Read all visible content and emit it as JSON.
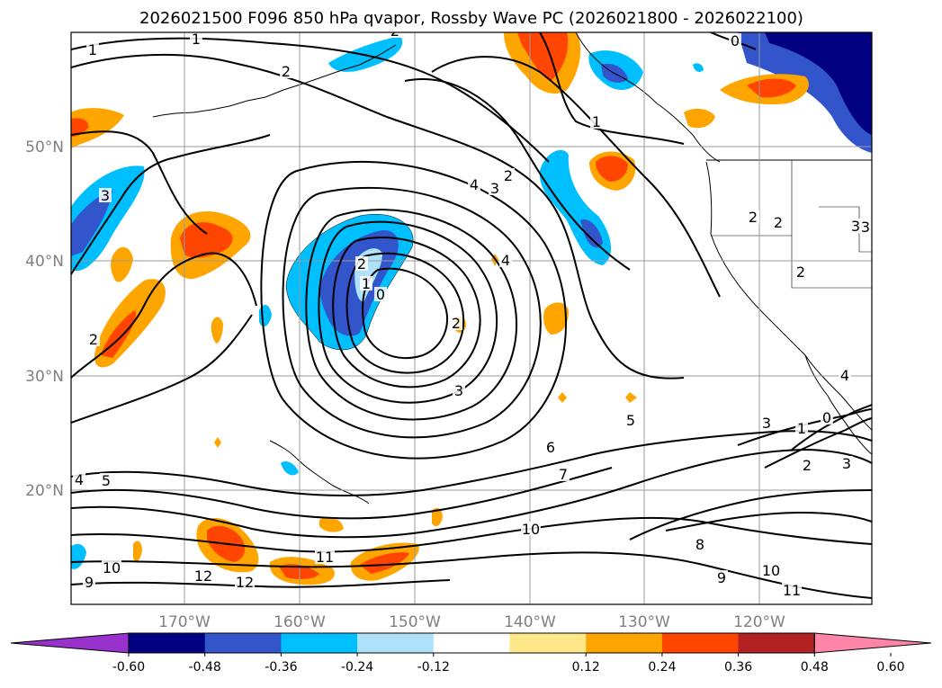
{
  "title": "2026021500 F096 850 hPa qvapor, Rossby Wave PC (2026021800 - 2026022100)",
  "map": {
    "lat_labels": [
      "50°N",
      "40°N",
      "30°N",
      "20°N"
    ],
    "lon_labels": [
      "170°W",
      "160°W",
      "150°W",
      "140°W",
      "130°W",
      "120°W"
    ]
  },
  "colorbar": {
    "colors": [
      "#9932cc",
      "#000080",
      "#3355cc",
      "#00bfff",
      "#aee2fa",
      "#ffffff",
      "#ffe88a",
      "#ffa500",
      "#ff4500",
      "#b22222",
      "#ff85a8"
    ],
    "ticks": [
      "-0.60",
      "-0.48",
      "-0.36",
      "-0.24",
      "-0.12",
      "0.12",
      "0.24",
      "0.36",
      "0.48",
      "0.60"
    ]
  },
  "contour_labels": [
    "1",
    "1",
    "1",
    "2",
    "0",
    "2",
    "2",
    "3",
    "4",
    "3",
    "2",
    "2",
    "3",
    "2",
    "2",
    "0",
    "1",
    "4",
    "2",
    "3",
    "5",
    "6",
    "7",
    "3",
    "1",
    "0",
    "4",
    "2",
    "3",
    "10",
    "8",
    "10",
    "9",
    "11",
    "11",
    "12",
    "5",
    "4",
    "10",
    "9",
    "12",
    "2",
    "3"
  ]
}
